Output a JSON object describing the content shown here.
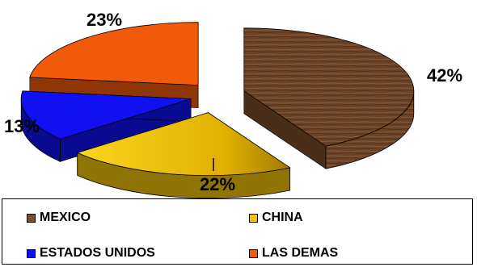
{
  "chart_data": {
    "type": "pie",
    "style": "3d-exploded",
    "slices": [
      {
        "label": "MEXICO",
        "value": 42,
        "value_label": "42%",
        "color": "#7a4e2b"
      },
      {
        "label": "CHINA",
        "value": 22,
        "value_label": "22%",
        "color": "#f2c20a"
      },
      {
        "label": "ESTADOS UNIDOS",
        "value": 13,
        "value_label": "13%",
        "color": "#1010f0"
      },
      {
        "label": "LAS DEMAS",
        "value": 23,
        "value_label": "23%",
        "color": "#f05a0a"
      }
    ],
    "legend_position": "bottom"
  }
}
